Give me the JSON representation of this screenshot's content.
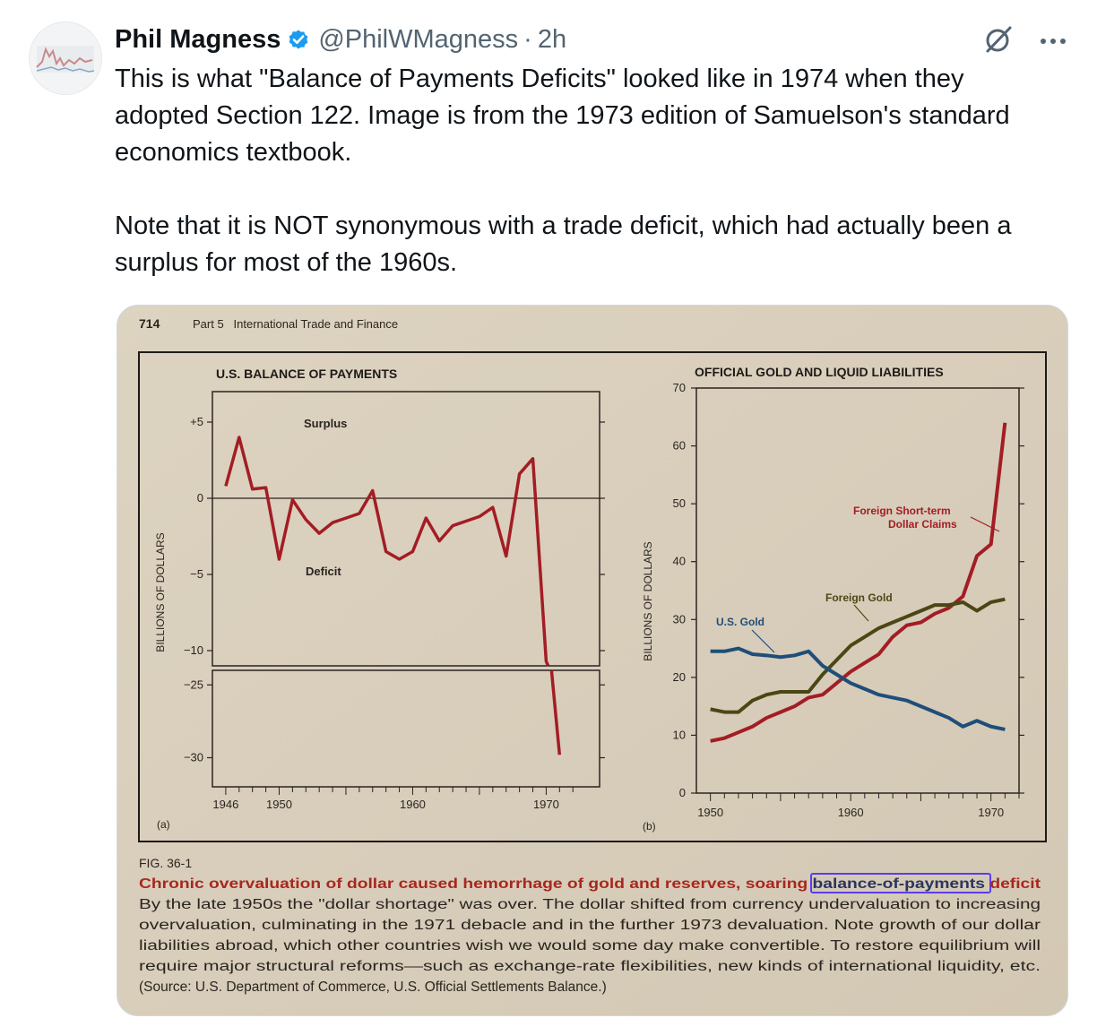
{
  "author": {
    "name": "Phil Magness",
    "handle": "@PhilWMagness",
    "separator": "·",
    "time": "2h"
  },
  "tweet": {
    "paragraph1": "This is what \"Balance of Payments Deficits\" looked like in 1974 when they adopted Section 122. Image is from the 1973 edition of Samuelson's standard economics textbook.",
    "paragraph2": "Note that it is NOT synonymous with a trade deficit, which had actually been a surplus for most of the 1960s."
  },
  "icons": {
    "verified": "verified-badge-icon",
    "grok": "grok-icon",
    "more": "more-icon"
  },
  "colors": {
    "accent": "#1d9bf0",
    "paper": "#d9cfbd",
    "red_series": "#a31d25",
    "olive_series": "#4a4714",
    "blue_series": "#1f4e79",
    "caption_red": "#a8271f",
    "highlight": "#5a3df0"
  },
  "book_page": {
    "page_number": "714",
    "running_head": "Part 5   International Trade and Finance",
    "figure_label": "FIG. 36-1",
    "caption_title_before": "Chronic overvaluation of dollar caused hemorrhage of gold and reserves, soaring ",
    "caption_title_highlight": "balance-of-payments",
    "caption_title_after": " deficit",
    "caption_lines": [
      "By the late 1950s the \"dollar shortage\" was over. The dollar shifted from currency undervaluation to increasing",
      "overvaluation, culminating in the 1971 debacle and in the further 1973 devaluation. Note growth of our dollar",
      "liabilities abroad, which other countries wish we would some day make convertible. To restore equilibrium will",
      "require major structural reforms—such as exchange-rate flexibilities, new kinds of international liquidity, etc.",
      "(Source: U.S. Department of Commerce, U.S. Official Settlements Balance.)"
    ]
  },
  "chart_data": [
    {
      "type": "line",
      "panel_label": "(a)",
      "title": "U.S. BALANCE OF PAYMENTS",
      "ylabel": "BILLIONS OF DOLLARS",
      "yticks_upper": [
        "+5",
        "0",
        "−5",
        "−10"
      ],
      "yticks_lower": [
        "−25",
        "−30"
      ],
      "xticks": [
        "1946",
        "1950",
        "1960",
        "1970"
      ],
      "annotations": [
        "Surplus",
        "Deficit"
      ],
      "xlim": [
        1945,
        1974
      ],
      "ylim_upper": [
        -11,
        7
      ],
      "ylim_lower": [
        -32,
        -24
      ],
      "series": [
        {
          "color": "#a31d25",
          "x": [
            1946,
            1947,
            1948,
            1949,
            1950,
            1951,
            1952,
            1953,
            1954,
            1955,
            1956,
            1957,
            1958,
            1959,
            1960,
            1961,
            1962,
            1963,
            1964,
            1965,
            1966,
            1967,
            1968,
            1969,
            1970,
            1971
          ],
          "y": [
            0.8,
            4.0,
            0.6,
            0.7,
            -4.0,
            -0.1,
            -1.4,
            -2.3,
            -1.6,
            -1.3,
            -1.0,
            0.5,
            -3.5,
            -4.0,
            -3.5,
            -1.3,
            -2.8,
            -1.8,
            -1.5,
            -1.2,
            -0.6,
            -3.8,
            1.6,
            2.6,
            -10.7,
            -29.8
          ]
        }
      ]
    },
    {
      "type": "line",
      "panel_label": "(b)",
      "title": "OFFICIAL GOLD AND LIQUID LIABILITIES",
      "ylabel": "BILLIONS OF DOLLARS",
      "yticks": [
        "0",
        "10",
        "20",
        "30",
        "40",
        "50",
        "60",
        "70"
      ],
      "xticks": [
        "1950",
        "1960",
        "1970"
      ],
      "xlim": [
        1949,
        1972
      ],
      "ylim": [
        0,
        70
      ],
      "series": [
        {
          "name": "Foreign Short-term Dollar Claims",
          "color": "#a31d25",
          "x": [
            1950,
            1951,
            1952,
            1953,
            1954,
            1955,
            1956,
            1957,
            1958,
            1959,
            1960,
            1961,
            1962,
            1963,
            1964,
            1965,
            1966,
            1967,
            1968,
            1969,
            1970,
            1971
          ],
          "y": [
            9,
            9.5,
            10.5,
            11.5,
            13,
            14,
            15,
            16.5,
            17,
            19,
            21,
            22.5,
            24,
            27,
            29,
            29.5,
            31,
            32,
            34,
            41,
            43,
            64
          ]
        },
        {
          "name": "Foreign Gold",
          "color": "#4a4714",
          "x": [
            1950,
            1951,
            1952,
            1953,
            1954,
            1955,
            1956,
            1957,
            1958,
            1959,
            1960,
            1961,
            1962,
            1963,
            1964,
            1965,
            1966,
            1967,
            1968,
            1969,
            1970,
            1971
          ],
          "y": [
            14.5,
            14,
            14,
            16,
            17,
            17.5,
            17.5,
            17.5,
            20.5,
            23,
            25.5,
            27,
            28.5,
            29.5,
            30.5,
            31.5,
            32.5,
            32.5,
            33,
            31.5,
            33,
            33.5
          ]
        },
        {
          "name": "U.S. Gold",
          "color": "#1f4e79",
          "x": [
            1950,
            1951,
            1952,
            1953,
            1954,
            1955,
            1956,
            1957,
            1958,
            1959,
            1960,
            1961,
            1962,
            1963,
            1964,
            1965,
            1966,
            1967,
            1968,
            1969,
            1970,
            1971
          ],
          "y": [
            24.5,
            24.5,
            25,
            24,
            23.8,
            23.5,
            23.8,
            24.5,
            22,
            20.5,
            19,
            18,
            17,
            16.5,
            16,
            15,
            14,
            13,
            11.5,
            12.5,
            11.5,
            11
          ]
        }
      ]
    }
  ]
}
